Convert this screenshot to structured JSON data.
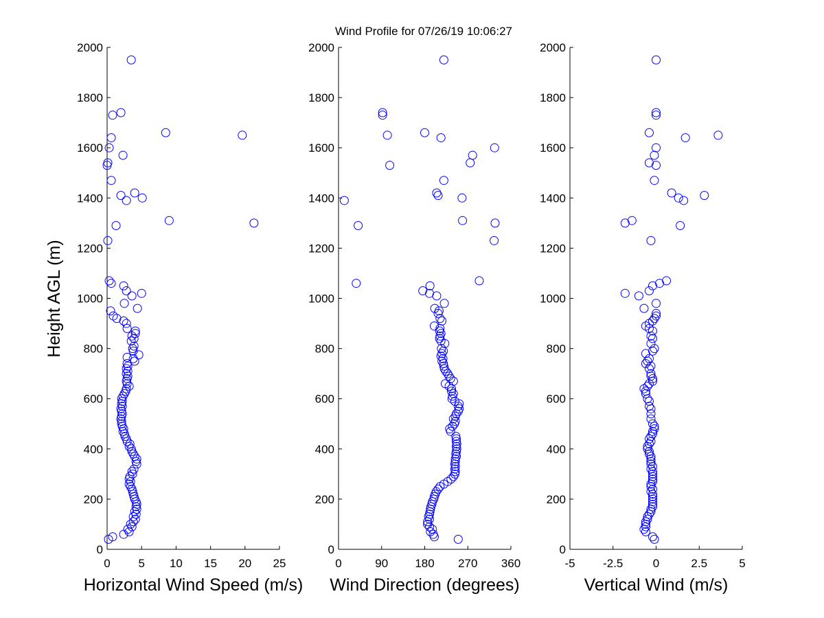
{
  "figure": {
    "title": "Wind Profile for  07/26/19 10:06:27",
    "ylabel": "Height AGL (m)"
  },
  "chart_data": [
    {
      "type": "scatter",
      "xlabel": "Horizontal Wind Speed (m/s)",
      "xlim": [
        0,
        25
      ],
      "ylim": [
        0,
        2000
      ],
      "xticks": [
        0,
        5,
        10,
        15,
        20,
        25
      ],
      "xtick_labels": [
        "0",
        "5",
        "10",
        "15",
        "20",
        "25"
      ],
      "yticks": [
        0,
        200,
        400,
        600,
        800,
        1000,
        1200,
        1400,
        1600,
        1800,
        2000
      ],
      "ytick_labels": [
        "0",
        "200",
        "400",
        "600",
        "800",
        "1000",
        "1200",
        "1400",
        "1600",
        "1800",
        "2000"
      ],
      "marker_color": "#0000ff",
      "grid": false,
      "points": [
        [
          0.2,
          40
        ],
        [
          0.8,
          50
        ],
        [
          2.4,
          60
        ],
        [
          3.2,
          70
        ],
        [
          3.0,
          80
        ],
        [
          3.6,
          90
        ],
        [
          3.4,
          100
        ],
        [
          3.8,
          110
        ],
        [
          4.1,
          120
        ],
        [
          3.8,
          130
        ],
        [
          4.2,
          140
        ],
        [
          4.0,
          150
        ],
        [
          4.3,
          160
        ],
        [
          4.2,
          170
        ],
        [
          4.3,
          180
        ],
        [
          4.2,
          190
        ],
        [
          4.0,
          200
        ],
        [
          3.9,
          210
        ],
        [
          3.8,
          220
        ],
        [
          3.7,
          230
        ],
        [
          3.6,
          240
        ],
        [
          3.4,
          250
        ],
        [
          3.2,
          260
        ],
        [
          3.4,
          270
        ],
        [
          3.2,
          280
        ],
        [
          3.3,
          290
        ],
        [
          3.7,
          300
        ],
        [
          3.6,
          310
        ],
        [
          3.9,
          320
        ],
        [
          4.3,
          340
        ],
        [
          4.2,
          350
        ],
        [
          4.3,
          360
        ],
        [
          4.0,
          370
        ],
        [
          3.8,
          380
        ],
        [
          3.6,
          390
        ],
        [
          3.5,
          400
        ],
        [
          3.2,
          410
        ],
        [
          3.3,
          420
        ],
        [
          2.9,
          430
        ],
        [
          2.8,
          440
        ],
        [
          2.6,
          450
        ],
        [
          2.5,
          460
        ],
        [
          2.3,
          470
        ],
        [
          2.4,
          480
        ],
        [
          2.2,
          490
        ],
        [
          2.1,
          500
        ],
        [
          2.1,
          510
        ],
        [
          2.0,
          520
        ],
        [
          2.1,
          530
        ],
        [
          2.2,
          540
        ],
        [
          2.1,
          550
        ],
        [
          2.0,
          560
        ],
        [
          2.2,
          570
        ],
        [
          2.1,
          580
        ],
        [
          2.2,
          590
        ],
        [
          2.1,
          600
        ],
        [
          2.3,
          610
        ],
        [
          2.5,
          620
        ],
        [
          2.7,
          630
        ],
        [
          2.8,
          640
        ],
        [
          3.2,
          650
        ],
        [
          2.9,
          660
        ],
        [
          2.8,
          670
        ],
        [
          2.9,
          680
        ],
        [
          3.0,
          690
        ],
        [
          2.8,
          700
        ],
        [
          3.0,
          710
        ],
        [
          2.8,
          720
        ],
        [
          3.0,
          730
        ],
        [
          2.9,
          740
        ],
        [
          4.0,
          750
        ],
        [
          3.8,
          760
        ],
        [
          2.9,
          765
        ],
        [
          4.6,
          775
        ],
        [
          3.8,
          790
        ],
        [
          3.7,
          800
        ],
        [
          3.9,
          810
        ],
        [
          3.5,
          830
        ],
        [
          3.9,
          840
        ],
        [
          3.6,
          850
        ],
        [
          4.1,
          860
        ],
        [
          4.1,
          870
        ],
        [
          2.9,
          880
        ],
        [
          2.8,
          900
        ],
        [
          2.4,
          910
        ],
        [
          1.4,
          920
        ],
        [
          0.9,
          930
        ],
        [
          0.5,
          950
        ],
        [
          4.4,
          960
        ],
        [
          2.5,
          980
        ],
        [
          3.6,
          1010
        ],
        [
          2.8,
          1030
        ],
        [
          5.0,
          1020
        ],
        [
          2.4,
          1050
        ],
        [
          0.6,
          1060
        ],
        [
          0.3,
          1070
        ],
        [
          0.1,
          1230
        ],
        [
          1.3,
          1290
        ],
        [
          21.3,
          1300
        ],
        [
          9.0,
          1310
        ],
        [
          2.8,
          1390
        ],
        [
          5.1,
          1400
        ],
        [
          2.0,
          1410
        ],
        [
          4.0,
          1420
        ],
        [
          0.6,
          1470
        ],
        [
          0.0,
          1530
        ],
        [
          0.1,
          1540
        ],
        [
          2.3,
          1570
        ],
        [
          0.3,
          1600
        ],
        [
          19.6,
          1650
        ],
        [
          8.5,
          1660
        ],
        [
          0.6,
          1640
        ],
        [
          0.8,
          1730
        ],
        [
          2.0,
          1740
        ],
        [
          3.5,
          1950
        ]
      ]
    },
    {
      "type": "scatter",
      "xlabel": "Wind Direction (degrees)",
      "xlim": [
        0,
        360
      ],
      "ylim": [
        0,
        2000
      ],
      "xticks": [
        0,
        90,
        180,
        270,
        360
      ],
      "xtick_labels": [
        "0",
        "90",
        "180",
        "270",
        "360"
      ],
      "yticks": [
        0,
        200,
        400,
        600,
        800,
        1000,
        1200,
        1400,
        1600,
        1800,
        2000
      ],
      "ytick_labels": [
        "0",
        "200",
        "400",
        "600",
        "800",
        "1000",
        "1200",
        "1400",
        "1600",
        "1800",
        "2000"
      ],
      "marker_color": "#0000ff",
      "grid": false,
      "points": [
        [
          250,
          40
        ],
        [
          200,
          50
        ],
        [
          198,
          60
        ],
        [
          192,
          70
        ],
        [
          196,
          80
        ],
        [
          190,
          90
        ],
        [
          186,
          100
        ],
        [
          186,
          110
        ],
        [
          190,
          120
        ],
        [
          188,
          130
        ],
        [
          190,
          140
        ],
        [
          191,
          150
        ],
        [
          192,
          160
        ],
        [
          193,
          170
        ],
        [
          195,
          180
        ],
        [
          196,
          190
        ],
        [
          199,
          200
        ],
        [
          200,
          210
        ],
        [
          202,
          220
        ],
        [
          204,
          230
        ],
        [
          208,
          240
        ],
        [
          212,
          250
        ],
        [
          220,
          260
        ],
        [
          228,
          270
        ],
        [
          235,
          280
        ],
        [
          240,
          290
        ],
        [
          243,
          300
        ],
        [
          244,
          310
        ],
        [
          243,
          320
        ],
        [
          244,
          330
        ],
        [
          243,
          340
        ],
        [
          244,
          350
        ],
        [
          244,
          360
        ],
        [
          246,
          370
        ],
        [
          245,
          380
        ],
        [
          246,
          390
        ],
        [
          247,
          400
        ],
        [
          246,
          410
        ],
        [
          247,
          420
        ],
        [
          246,
          430
        ],
        [
          246,
          440
        ],
        [
          245,
          450
        ],
        [
          234,
          470
        ],
        [
          232,
          480
        ],
        [
          238,
          490
        ],
        [
          242,
          500
        ],
        [
          244,
          510
        ],
        [
          240,
          520
        ],
        [
          244,
          530
        ],
        [
          246,
          540
        ],
        [
          250,
          550
        ],
        [
          252,
          560
        ],
        [
          250,
          570
        ],
        [
          252,
          580
        ],
        [
          243,
          590
        ],
        [
          237,
          600
        ],
        [
          238,
          610
        ],
        [
          240,
          620
        ],
        [
          236,
          630
        ],
        [
          236,
          640
        ],
        [
          231,
          650
        ],
        [
          223,
          660
        ],
        [
          240,
          670
        ],
        [
          234,
          680
        ],
        [
          231,
          690
        ],
        [
          228,
          700
        ],
        [
          224,
          710
        ],
        [
          221,
          720
        ],
        [
          220,
          730
        ],
        [
          219,
          740
        ],
        [
          216,
          750
        ],
        [
          218,
          760
        ],
        [
          214,
          770
        ],
        [
          216,
          780
        ],
        [
          219,
          790
        ],
        [
          215,
          800
        ],
        [
          222,
          820
        ],
        [
          214,
          830
        ],
        [
          211,
          840
        ],
        [
          212,
          850
        ],
        [
          214,
          860
        ],
        [
          211,
          870
        ],
        [
          212,
          880
        ],
        [
          200,
          890
        ],
        [
          216,
          910
        ],
        [
          212,
          920
        ],
        [
          208,
          940
        ],
        [
          210,
          950
        ],
        [
          201,
          960
        ],
        [
          221,
          980
        ],
        [
          205,
          1010
        ],
        [
          190,
          1020
        ],
        [
          176,
          1030
        ],
        [
          191,
          1050
        ],
        [
          37,
          1060
        ],
        [
          294,
          1070
        ],
        [
          325,
          1230
        ],
        [
          41,
          1290
        ],
        [
          327,
          1300
        ],
        [
          259,
          1310
        ],
        [
          12,
          1390
        ],
        [
          258,
          1400
        ],
        [
          208,
          1410
        ],
        [
          205,
          1420
        ],
        [
          220,
          1470
        ],
        [
          107,
          1530
        ],
        [
          275,
          1540
        ],
        [
          280,
          1570
        ],
        [
          326,
          1600
        ],
        [
          102,
          1650
        ],
        [
          180,
          1660
        ],
        [
          214,
          1640
        ],
        [
          92,
          1730
        ],
        [
          92,
          1740
        ],
        [
          220,
          1950
        ]
      ]
    },
    {
      "type": "scatter",
      "xlabel": "Vertical Wind (m/s)",
      "xlim": [
        -5,
        5
      ],
      "ylim": [
        0,
        2000
      ],
      "xticks": [
        -5,
        -2.5,
        0,
        2.5,
        5
      ],
      "xtick_labels": [
        "-5",
        "-2.5",
        "0",
        "2.5",
        "5"
      ],
      "yticks": [
        0,
        200,
        400,
        600,
        800,
        1000,
        1200,
        1400,
        1600,
        1800,
        2000
      ],
      "ytick_labels": [
        "0",
        "200",
        "400",
        "600",
        "800",
        "1000",
        "1200",
        "1400",
        "1600",
        "1800",
        "2000"
      ],
      "marker_color": "#0000ff",
      "grid": false,
      "points": [
        [
          -0.1,
          40
        ],
        [
          -0.2,
          50
        ],
        [
          -0.6,
          70
        ],
        [
          -0.7,
          80
        ],
        [
          -0.6,
          90
        ],
        [
          -0.6,
          100
        ],
        [
          -0.6,
          110
        ],
        [
          -0.5,
          120
        ],
        [
          -0.5,
          130
        ],
        [
          -0.4,
          140
        ],
        [
          -0.3,
          150
        ],
        [
          -0.3,
          160
        ],
        [
          -0.2,
          170
        ],
        [
          -0.2,
          180
        ],
        [
          -0.2,
          190
        ],
        [
          -0.2,
          200
        ],
        [
          -0.2,
          210
        ],
        [
          -0.2,
          220
        ],
        [
          -0.3,
          230
        ],
        [
          -0.2,
          240
        ],
        [
          -0.3,
          250
        ],
        [
          -0.3,
          260
        ],
        [
          -0.2,
          270
        ],
        [
          -0.2,
          280
        ],
        [
          -0.2,
          290
        ],
        [
          -0.2,
          300
        ],
        [
          -0.2,
          310
        ],
        [
          -0.3,
          320
        ],
        [
          -0.2,
          330
        ],
        [
          -0.3,
          340
        ],
        [
          -0.3,
          350
        ],
        [
          -0.3,
          360
        ],
        [
          -0.3,
          370
        ],
        [
          -0.4,
          380
        ],
        [
          -0.4,
          390
        ],
        [
          -0.5,
          400
        ],
        [
          -0.5,
          410
        ],
        [
          -0.4,
          420
        ],
        [
          -0.3,
          430
        ],
        [
          -0.4,
          440
        ],
        [
          -0.3,
          450
        ],
        [
          -0.2,
          460
        ],
        [
          -0.2,
          470
        ],
        [
          -0.1,
          480
        ],
        [
          -0.1,
          490
        ],
        [
          -0.2,
          500
        ],
        [
          -0.3,
          520
        ],
        [
          -0.3,
          540
        ],
        [
          -0.3,
          560
        ],
        [
          -0.4,
          570
        ],
        [
          -0.4,
          590
        ],
        [
          -0.5,
          600
        ],
        [
          -0.6,
          620
        ],
        [
          -0.6,
          630
        ],
        [
          -0.7,
          640
        ],
        [
          -0.5,
          650
        ],
        [
          -0.4,
          660
        ],
        [
          -0.2,
          670
        ],
        [
          -0.2,
          680
        ],
        [
          -0.3,
          690
        ],
        [
          -0.3,
          700
        ],
        [
          -0.4,
          720
        ],
        [
          -0.3,
          730
        ],
        [
          -0.6,
          740
        ],
        [
          -0.5,
          750
        ],
        [
          -0.4,
          760
        ],
        [
          -0.6,
          780
        ],
        [
          -0.2,
          790
        ],
        [
          -0.1,
          800
        ],
        [
          -0.3,
          820
        ],
        [
          -0.2,
          840
        ],
        [
          -0.3,
          850
        ],
        [
          -0.2,
          870
        ],
        [
          -0.4,
          880
        ],
        [
          -0.6,
          890
        ],
        [
          -0.4,
          900
        ],
        [
          -0.2,
          910
        ],
        [
          -0.1,
          920
        ],
        [
          0.0,
          930
        ],
        [
          0.0,
          940
        ],
        [
          -0.7,
          960
        ],
        [
          0.0,
          980
        ],
        [
          -1.0,
          1010
        ],
        [
          -1.8,
          1020
        ],
        [
          -0.4,
          1030
        ],
        [
          -0.2,
          1050
        ],
        [
          0.2,
          1060
        ],
        [
          0.6,
          1070
        ],
        [
          -0.3,
          1230
        ],
        [
          1.4,
          1290
        ],
        [
          -1.8,
          1300
        ],
        [
          -1.4,
          1310
        ],
        [
          1.6,
          1390
        ],
        [
          1.3,
          1400
        ],
        [
          2.8,
          1410
        ],
        [
          0.9,
          1420
        ],
        [
          -0.1,
          1470
        ],
        [
          0.0,
          1530
        ],
        [
          -0.4,
          1540
        ],
        [
          -0.1,
          1570
        ],
        [
          0.0,
          1600
        ],
        [
          1.7,
          1640
        ],
        [
          3.6,
          1650
        ],
        [
          -0.4,
          1660
        ],
        [
          0.0,
          1730
        ],
        [
          0.0,
          1740
        ],
        [
          0.0,
          1950
        ]
      ]
    }
  ]
}
